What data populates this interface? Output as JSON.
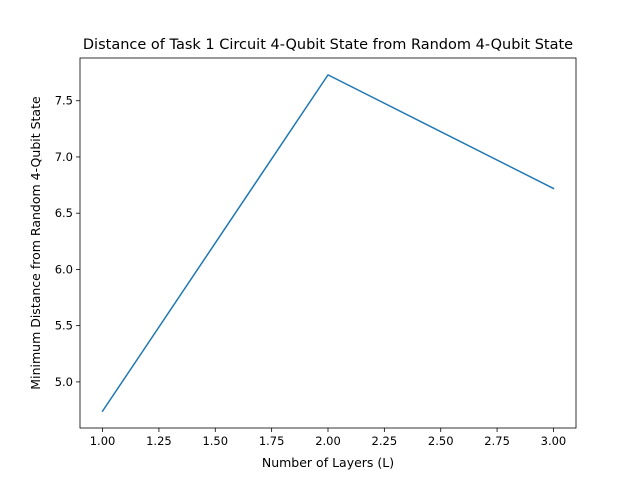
{
  "chart_data": {
    "type": "line",
    "title": "Distance of Task 1 Circuit 4-Qubit State from Random 4-Qubit State",
    "xlabel": "Number of Layers (L)",
    "ylabel": "Minimum Distance from Random 4-Qubit State",
    "xlim": [
      0.9,
      3.1
    ],
    "ylim": [
      4.59,
      7.88
    ],
    "xticks": [
      1.0,
      1.25,
      1.5,
      1.75,
      2.0,
      2.25,
      2.5,
      2.75,
      3.0
    ],
    "xtick_labels": [
      "1.00",
      "1.25",
      "1.50",
      "1.75",
      "2.00",
      "2.25",
      "2.50",
      "2.75",
      "3.00"
    ],
    "yticks": [
      5.0,
      5.5,
      6.0,
      6.5,
      7.0,
      7.5
    ],
    "ytick_labels": [
      "5.0",
      "5.5",
      "6.0",
      "6.5",
      "7.0",
      "7.5"
    ],
    "grid": false,
    "legend": "none",
    "series": [
      {
        "color": "#1f77b4",
        "x": [
          1,
          2,
          3
        ],
        "y": [
          4.74,
          7.73,
          6.72
        ]
      }
    ]
  }
}
